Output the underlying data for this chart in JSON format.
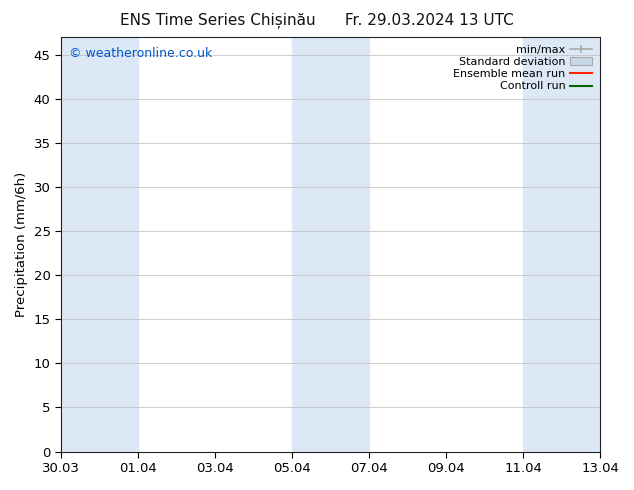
{
  "title_left": "ENS Time Series Chișinău",
  "title_right": "Fr. 29.03.2024 13 UTC",
  "ylabel": "Precipitation (mm/6h)",
  "watermark": "© weatheronline.co.uk",
  "watermark_color": "#0055cc",
  "ylim": [
    0,
    47
  ],
  "yticks": [
    0,
    5,
    10,
    15,
    20,
    25,
    30,
    35,
    40,
    45
  ],
  "xlim": [
    0,
    14
  ],
  "x_tick_labels": [
    "30.03",
    "01.04",
    "03.04",
    "05.04",
    "07.04",
    "09.04",
    "11.04",
    "13.04"
  ],
  "x_tick_positions": [
    0,
    2,
    4,
    6,
    8,
    10,
    12,
    14
  ],
  "shaded_bands": [
    {
      "x_start": 0.0,
      "x_end": 1.0,
      "color": "#ddeeff"
    },
    {
      "x_start": 1.0,
      "x_end": 2.0,
      "color": "#ffffff"
    },
    {
      "x_start": 6.0,
      "x_end": 7.0,
      "color": "#ddeeff"
    },
    {
      "x_start": 7.0,
      "x_end": 8.0,
      "color": "#ddeeff"
    },
    {
      "x_start": 12.0,
      "x_end": 14.0,
      "color": "#ddeeff"
    }
  ],
  "bg_color": "#ffffff",
  "plot_bg_color": "#ffffff",
  "legend_text_color": "#222222",
  "minmax_color": "#aaaaaa",
  "stddev_color": "#c8d8e8",
  "ensemble_color": "#ff2200",
  "control_color": "#006600",
  "font_size": 9.5,
  "title_font_size": 11,
  "watermark_font_size": 9
}
